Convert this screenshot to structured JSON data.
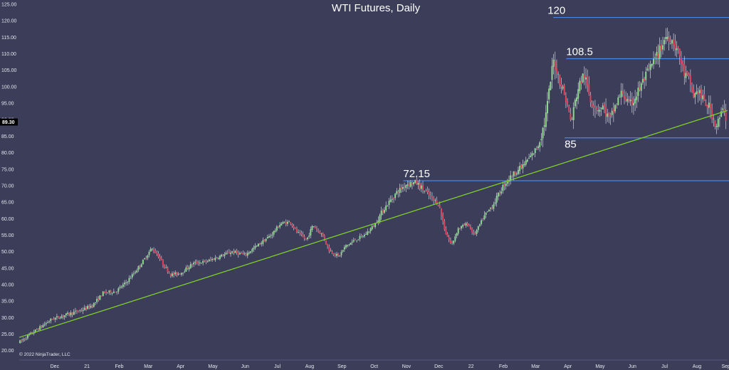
{
  "chart_data": {
    "type": "candlestick",
    "title": "WTI Futures, Daily",
    "copyright": "© 2022 NinjaTrader, LLC",
    "ylim": [
      18,
      125
    ],
    "yticks": [
      20,
      25,
      30,
      35,
      40,
      45,
      50,
      55,
      60,
      65,
      70,
      75,
      80,
      85,
      90,
      95,
      100,
      105,
      110,
      115,
      120,
      125
    ],
    "ytick_labels": [
      "20.00",
      "25.00",
      "30.00",
      "35.00",
      "40.00",
      "45.00",
      "50.00",
      "55.00",
      "60.00",
      "65.00",
      "70.00",
      "75.00",
      "80.00",
      "85.00",
      "90.00",
      "95.00",
      "100.00",
      "105.00",
      "110.00",
      "115.00",
      "120.00",
      "125.00"
    ],
    "xlim": [
      0,
      21.95
    ],
    "xticks": [
      {
        "label": "Dec",
        "x": 1.1
      },
      {
        "label": "21",
        "x": 2.1
      },
      {
        "label": "Feb",
        "x": 3.1
      },
      {
        "label": "Mar",
        "x": 4.0
      },
      {
        "label": "Apr",
        "x": 5.0
      },
      {
        "label": "May",
        "x": 6.0
      },
      {
        "label": "Jun",
        "x": 7.0
      },
      {
        "label": "Jul",
        "x": 8.0
      },
      {
        "label": "Aug",
        "x": 9.0
      },
      {
        "label": "Sep",
        "x": 10.0
      },
      {
        "label": "Oct",
        "x": 11.0
      },
      {
        "label": "Nov",
        "x": 12.0
      },
      {
        "label": "Dec",
        "x": 13.0
      },
      {
        "label": "22",
        "x": 14.0
      },
      {
        "label": "Feb",
        "x": 15.0
      },
      {
        "label": "Mar",
        "x": 16.0
      },
      {
        "label": "Apr",
        "x": 17.0
      },
      {
        "label": "May",
        "x": 18.0
      },
      {
        "label": "Jun",
        "x": 19.0
      },
      {
        "label": "Jul",
        "x": 20.0
      },
      {
        "label": "Aug",
        "x": 21.0
      },
      {
        "label": "Sep",
        "x": 21.9
      }
    ],
    "current_price": {
      "value": 89.3,
      "label": "89.30"
    },
    "close_path": [
      [
        0,
        22.5
      ],
      [
        0.5,
        26
      ],
      [
        1.0,
        29.5
      ],
      [
        1.5,
        31
      ],
      [
        2.0,
        32.5
      ],
      [
        2.3,
        34
      ],
      [
        2.6,
        37.5
      ],
      [
        3.0,
        38
      ],
      [
        3.3,
        40.5
      ],
      [
        3.6,
        44
      ],
      [
        3.9,
        48
      ],
      [
        4.1,
        51
      ],
      [
        4.3,
        49
      ],
      [
        4.5,
        45.5
      ],
      [
        4.7,
        43
      ],
      [
        5.0,
        43.5
      ],
      [
        5.4,
        46.5
      ],
      [
        5.8,
        47
      ],
      [
        6.2,
        48.5
      ],
      [
        6.6,
        50
      ],
      [
        7.0,
        49
      ],
      [
        7.4,
        52
      ],
      [
        7.8,
        55
      ],
      [
        8.1,
        58.5
      ],
      [
        8.4,
        59
      ],
      [
        8.6,
        56
      ],
      [
        8.9,
        53.5
      ],
      [
        9.1,
        58
      ],
      [
        9.4,
        55
      ],
      [
        9.6,
        50.5
      ],
      [
        9.9,
        48.5
      ],
      [
        10.1,
        51.5
      ],
      [
        10.4,
        53.5
      ],
      [
        10.7,
        55
      ],
      [
        11.0,
        58
      ],
      [
        11.3,
        63
      ],
      [
        11.7,
        68
      ],
      [
        12.0,
        70.5
      ],
      [
        12.3,
        71
      ],
      [
        12.5,
        69
      ],
      [
        12.8,
        66
      ],
      [
        13.0,
        64.5
      ],
      [
        13.2,
        56
      ],
      [
        13.4,
        52
      ],
      [
        13.6,
        57
      ],
      [
        13.9,
        58.5
      ],
      [
        14.1,
        55
      ],
      [
        14.4,
        60.5
      ],
      [
        14.7,
        64.5
      ],
      [
        15.0,
        70
      ],
      [
        15.3,
        73.5
      ],
      [
        15.6,
        76
      ],
      [
        15.9,
        79.5
      ],
      [
        16.1,
        82.5
      ],
      [
        16.3,
        90
      ],
      [
        16.4,
        97
      ],
      [
        16.55,
        108
      ],
      [
        16.75,
        102
      ],
      [
        16.95,
        96
      ],
      [
        17.1,
        89
      ],
      [
        17.3,
        99
      ],
      [
        17.5,
        104
      ],
      [
        17.7,
        96
      ],
      [
        17.9,
        93.5
      ],
      [
        18.1,
        94
      ],
      [
        18.3,
        89.5
      ],
      [
        18.5,
        95
      ],
      [
        18.7,
        98.5
      ],
      [
        18.9,
        94
      ],
      [
        19.1,
        97
      ],
      [
        19.35,
        102
      ],
      [
        19.6,
        106.5
      ],
      [
        19.85,
        111
      ],
      [
        20.05,
        115.5
      ],
      [
        20.25,
        114
      ],
      [
        20.45,
        110
      ],
      [
        20.6,
        104
      ],
      [
        20.75,
        102
      ],
      [
        20.9,
        97
      ],
      [
        21.05,
        99
      ],
      [
        21.2,
        95.5
      ],
      [
        21.4,
        93.5
      ],
      [
        21.6,
        88
      ],
      [
        21.75,
        91.5
      ],
      [
        21.85,
        93.5
      ],
      [
        21.92,
        89.3
      ]
    ],
    "trendline": {
      "x1": 0,
      "y1": 24,
      "x2": 21.95,
      "y2": 92.8
    },
    "levels": [
      {
        "label": "120",
        "value": 121,
        "x_start": 16.55
      },
      {
        "label": "108.5",
        "value": 108.5,
        "x_start": 16.95
      },
      {
        "label": "85",
        "value": 84.5,
        "x_start": 16.9
      },
      {
        "label": "72.15",
        "value": 71.5,
        "x_start": 11.9
      }
    ],
    "grid": false,
    "legend": "none"
  },
  "colors": {
    "background": "#3b3d59",
    "bull": "#8ed88e",
    "bear": "#e0445c",
    "wick": "#e8e8f2",
    "trendline": "#7ecf2a",
    "level_line": "#4a86e8",
    "axis_text": "#e6e6ee"
  }
}
